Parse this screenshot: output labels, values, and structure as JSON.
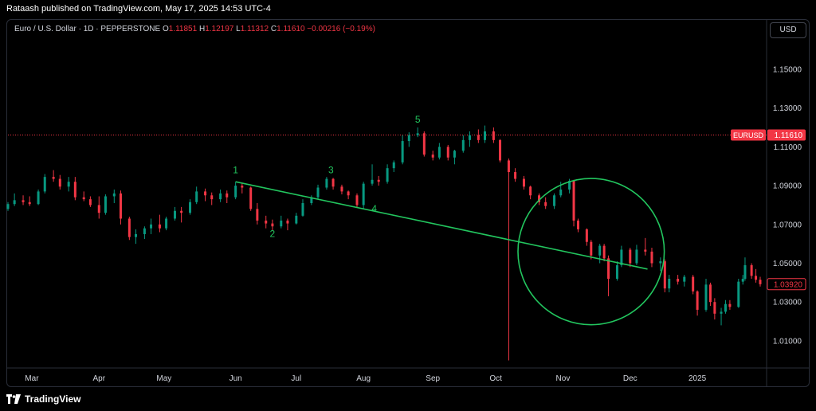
{
  "header": {
    "published": "Rataash published on TradingView.com, May 17, 2025 14:53 UTC-4"
  },
  "symbol": {
    "name": "Euro / U.S. Dollar · 1D · PEPPERSTONE",
    "o_label": "O",
    "o_value": "1.11851",
    "h_label": "H",
    "h_value": "1.12197",
    "l_label": "L",
    "l_value": "1.11312",
    "c_label": "C",
    "c_value": "1.11610",
    "change": "−0.00216 (−0.19%)"
  },
  "currency_button": "USD",
  "price_labels": {
    "symbol_tag": "EURUSD",
    "last_price": "1.11610",
    "other_price": "1.03920"
  },
  "footer": {
    "brand": "TradingView"
  },
  "colors": {
    "up": "#089981",
    "down": "#f23645",
    "annotation": "#22c55e",
    "axis_text": "#d1d4dc",
    "background": "#000000"
  },
  "chart_data": {
    "type": "candlestick",
    "y_ticks": [
      "1.15000",
      "1.13000",
      "1.11000",
      "1.09000",
      "1.07000",
      "1.05000",
      "1.03000",
      "1.01000"
    ],
    "y_tick_values": [
      1.15,
      1.13,
      1.11,
      1.09,
      1.07,
      1.05,
      1.03,
      1.01
    ],
    "ylim": [
      0.996,
      1.166
    ],
    "xlim": [
      "2024-02-19",
      "2025-01-31"
    ],
    "x_ticks": [
      {
        "label": "Mar",
        "date": "2024-03-01"
      },
      {
        "label": "Apr",
        "date": "2024-04-01"
      },
      {
        "label": "May",
        "date": "2024-05-01"
      },
      {
        "label": "Jun",
        "date": "2024-06-03"
      },
      {
        "label": "Jul",
        "date": "2024-07-01"
      },
      {
        "label": "Aug",
        "date": "2024-08-01"
      },
      {
        "label": "Sep",
        "date": "2024-09-02"
      },
      {
        "label": "Oct",
        "date": "2024-10-01"
      },
      {
        "label": "Nov",
        "date": "2024-11-01"
      },
      {
        "label": "Dec",
        "date": "2024-12-02"
      },
      {
        "label": "2025",
        "date": "2025-01-02"
      }
    ],
    "price_line": 1.1161,
    "trendline": {
      "from": {
        "date": "2024-06-03",
        "price": 1.092
      },
      "to": {
        "date": "2024-12-10",
        "price": 1.047
      }
    },
    "circle": {
      "center_date": "2024-11-14",
      "center_price": 1.056,
      "radius_price": 0.0145
    },
    "wave_labels": [
      {
        "label": "1",
        "date": "2024-06-03",
        "price": 1.0965
      },
      {
        "label": "2",
        "date": "2024-06-20",
        "price": 1.0635
      },
      {
        "label": "3",
        "date": "2024-07-17",
        "price": 1.0965
      },
      {
        "label": "4",
        "date": "2024-08-06",
        "price": 1.0765
      },
      {
        "label": "5",
        "date": "2024-08-26",
        "price": 1.1225
      }
    ],
    "candles": [
      {
        "date": "2024-02-19",
        "o": 1.078,
        "h": 1.0815,
        "l": 1.077,
        "c": 1.0805
      },
      {
        "date": "2024-02-22",
        "o": 1.0805,
        "h": 1.086,
        "l": 1.0795,
        "c": 1.0825
      },
      {
        "date": "2024-02-26",
        "o": 1.0825,
        "h": 1.085,
        "l": 1.08,
        "c": 1.0815
      },
      {
        "date": "2024-02-29",
        "o": 1.0815,
        "h": 1.0845,
        "l": 1.0795,
        "c": 1.0805
      },
      {
        "date": "2024-03-04",
        "o": 1.0805,
        "h": 1.088,
        "l": 1.08,
        "c": 1.087
      },
      {
        "date": "2024-03-07",
        "o": 1.087,
        "h": 1.096,
        "l": 1.086,
        "c": 1.0945
      },
      {
        "date": "2024-03-11",
        "o": 1.0945,
        "h": 1.098,
        "l": 1.092,
        "c": 1.0935
      },
      {
        "date": "2024-03-14",
        "o": 1.0935,
        "h": 1.0955,
        "l": 1.088,
        "c": 1.0895
      },
      {
        "date": "2024-03-18",
        "o": 1.0895,
        "h": 1.0945,
        "l": 1.087,
        "c": 1.092
      },
      {
        "date": "2024-03-21",
        "o": 1.092,
        "h": 1.0945,
        "l": 1.0825,
        "c": 1.084
      },
      {
        "date": "2024-03-25",
        "o": 1.084,
        "h": 1.087,
        "l": 1.082,
        "c": 1.083
      },
      {
        "date": "2024-03-28",
        "o": 1.083,
        "h": 1.0845,
        "l": 1.079,
        "c": 1.08
      },
      {
        "date": "2024-04-01",
        "o": 1.08,
        "h": 1.0845,
        "l": 1.073,
        "c": 1.076
      },
      {
        "date": "2024-04-04",
        "o": 1.076,
        "h": 1.0855,
        "l": 1.075,
        "c": 1.0845
      },
      {
        "date": "2024-04-08",
        "o": 1.0845,
        "h": 1.088,
        "l": 1.081,
        "c": 1.086
      },
      {
        "date": "2024-04-11",
        "o": 1.086,
        "h": 1.0875,
        "l": 1.07,
        "c": 1.073
      },
      {
        "date": "2024-04-15",
        "o": 1.073,
        "h": 1.074,
        "l": 1.062,
        "c": 1.0635
      },
      {
        "date": "2024-04-18",
        "o": 1.0635,
        "h": 1.0675,
        "l": 1.06,
        "c": 1.065
      },
      {
        "date": "2024-04-22",
        "o": 1.065,
        "h": 1.069,
        "l": 1.0625,
        "c": 1.068
      },
      {
        "date": "2024-04-25",
        "o": 1.068,
        "h": 1.073,
        "l": 1.065,
        "c": 1.07
      },
      {
        "date": "2024-04-29",
        "o": 1.07,
        "h": 1.075,
        "l": 1.066,
        "c": 1.068
      },
      {
        "date": "2024-05-02",
        "o": 1.068,
        "h": 1.074,
        "l": 1.067,
        "c": 1.073
      },
      {
        "date": "2024-05-06",
        "o": 1.073,
        "h": 1.079,
        "l": 1.072,
        "c": 1.077
      },
      {
        "date": "2024-05-09",
        "o": 1.077,
        "h": 1.079,
        "l": 1.071,
        "c": 1.076
      },
      {
        "date": "2024-05-13",
        "o": 1.076,
        "h": 1.083,
        "l": 1.075,
        "c": 1.0815
      },
      {
        "date": "2024-05-16",
        "o": 1.0815,
        "h": 1.0895,
        "l": 1.0805,
        "c": 1.087
      },
      {
        "date": "2024-05-20",
        "o": 1.087,
        "h": 1.0885,
        "l": 1.082,
        "c": 1.085
      },
      {
        "date": "2024-05-23",
        "o": 1.085,
        "h": 1.0865,
        "l": 1.08,
        "c": 1.083
      },
      {
        "date": "2024-05-27",
        "o": 1.083,
        "h": 1.088,
        "l": 1.0815,
        "c": 1.086
      },
      {
        "date": "2024-05-30",
        "o": 1.086,
        "h": 1.0875,
        "l": 1.081,
        "c": 1.084
      },
      {
        "date": "2024-06-03",
        "o": 1.084,
        "h": 1.092,
        "l": 1.083,
        "c": 1.09
      },
      {
        "date": "2024-06-06",
        "o": 1.09,
        "h": 1.0915,
        "l": 1.086,
        "c": 1.089
      },
      {
        "date": "2024-06-10",
        "o": 1.089,
        "h": 1.0895,
        "l": 1.077,
        "c": 1.078
      },
      {
        "date": "2024-06-13",
        "o": 1.078,
        "h": 1.081,
        "l": 1.07,
        "c": 1.072
      },
      {
        "date": "2024-06-17",
        "o": 1.072,
        "h": 1.0745,
        "l": 1.068,
        "c": 1.0705
      },
      {
        "date": "2024-06-20",
        "o": 1.0705,
        "h": 1.0725,
        "l": 1.067,
        "c": 1.069
      },
      {
        "date": "2024-06-24",
        "o": 1.069,
        "h": 1.0745,
        "l": 1.068,
        "c": 1.072
      },
      {
        "date": "2024-06-27",
        "o": 1.072,
        "h": 1.073,
        "l": 1.067,
        "c": 1.0705
      },
      {
        "date": "2024-07-01",
        "o": 1.0705,
        "h": 1.076,
        "l": 1.07,
        "c": 1.0745
      },
      {
        "date": "2024-07-04",
        "o": 1.0745,
        "h": 1.083,
        "l": 1.074,
        "c": 1.081
      },
      {
        "date": "2024-07-08",
        "o": 1.081,
        "h": 1.085,
        "l": 1.08,
        "c": 1.084
      },
      {
        "date": "2024-07-11",
        "o": 1.084,
        "h": 1.0905,
        "l": 1.083,
        "c": 1.089
      },
      {
        "date": "2024-07-15",
        "o": 1.089,
        "h": 1.0945,
        "l": 1.088,
        "c": 1.0935
      },
      {
        "date": "2024-07-18",
        "o": 1.0935,
        "h": 1.094,
        "l": 1.088,
        "c": 1.0895
      },
      {
        "date": "2024-07-22",
        "o": 1.0895,
        "h": 1.0905,
        "l": 1.0855,
        "c": 1.087
      },
      {
        "date": "2024-07-25",
        "o": 1.087,
        "h": 1.0875,
        "l": 1.083,
        "c": 1.085
      },
      {
        "date": "2024-07-29",
        "o": 1.085,
        "h": 1.086,
        "l": 1.079,
        "c": 1.08
      },
      {
        "date": "2024-08-01",
        "o": 1.08,
        "h": 1.092,
        "l": 1.078,
        "c": 1.091
      },
      {
        "date": "2024-08-05",
        "o": 1.091,
        "h": 1.101,
        "l": 1.09,
        "c": 1.093
      },
      {
        "date": "2024-08-08",
        "o": 1.093,
        "h": 1.095,
        "l": 1.09,
        "c": 1.092
      },
      {
        "date": "2024-08-12",
        "o": 1.092,
        "h": 1.101,
        "l": 1.091,
        "c": 1.099
      },
      {
        "date": "2024-08-15",
        "o": 1.099,
        "h": 1.103,
        "l": 1.097,
        "c": 1.102
      },
      {
        "date": "2024-08-19",
        "o": 1.102,
        "h": 1.116,
        "l": 1.101,
        "c": 1.113
      },
      {
        "date": "2024-08-22",
        "o": 1.113,
        "h": 1.1175,
        "l": 1.11,
        "c": 1.116
      },
      {
        "date": "2024-08-26",
        "o": 1.116,
        "h": 1.12,
        "l": 1.115,
        "c": 1.117
      },
      {
        "date": "2024-08-29",
        "o": 1.117,
        "h": 1.118,
        "l": 1.105,
        "c": 1.106
      },
      {
        "date": "2024-09-02",
        "o": 1.106,
        "h": 1.108,
        "l": 1.103,
        "c": 1.1045
      },
      {
        "date": "2024-09-05",
        "o": 1.1045,
        "h": 1.112,
        "l": 1.1035,
        "c": 1.11
      },
      {
        "date": "2024-09-09",
        "o": 1.11,
        "h": 1.111,
        "l": 1.103,
        "c": 1.1045
      },
      {
        "date": "2024-09-12",
        "o": 1.1045,
        "h": 1.1085,
        "l": 1.101,
        "c": 1.108
      },
      {
        "date": "2024-09-16",
        "o": 1.108,
        "h": 1.116,
        "l": 1.107,
        "c": 1.1135
      },
      {
        "date": "2024-09-19",
        "o": 1.1135,
        "h": 1.118,
        "l": 1.11,
        "c": 1.116
      },
      {
        "date": "2024-09-23",
        "o": 1.116,
        "h": 1.119,
        "l": 1.112,
        "c": 1.1135
      },
      {
        "date": "2024-09-26",
        "o": 1.1135,
        "h": 1.121,
        "l": 1.112,
        "c": 1.118
      },
      {
        "date": "2024-09-30",
        "o": 1.118,
        "h": 1.12,
        "l": 1.112,
        "c": 1.1135
      },
      {
        "date": "2024-10-03",
        "o": 1.1135,
        "h": 1.114,
        "l": 1.102,
        "c": 1.103
      },
      {
        "date": "2024-10-07",
        "o": 1.103,
        "h": 1.104,
        "l": 0.9999,
        "c": 1.097
      },
      {
        "date": "2024-10-10",
        "o": 1.097,
        "h": 1.099,
        "l": 1.092,
        "c": 1.0935
      },
      {
        "date": "2024-10-14",
        "o": 1.0935,
        "h": 1.095,
        "l": 1.088,
        "c": 1.0895
      },
      {
        "date": "2024-10-17",
        "o": 1.0895,
        "h": 1.09,
        "l": 1.083,
        "c": 1.085
      },
      {
        "date": "2024-10-21",
        "o": 1.085,
        "h": 1.086,
        "l": 1.08,
        "c": 1.0815
      },
      {
        "date": "2024-10-24",
        "o": 1.0815,
        "h": 1.084,
        "l": 1.078,
        "c": 1.0795
      },
      {
        "date": "2024-10-28",
        "o": 1.0795,
        "h": 1.086,
        "l": 1.078,
        "c": 1.085
      },
      {
        "date": "2024-10-31",
        "o": 1.085,
        "h": 1.092,
        "l": 1.084,
        "c": 1.088
      },
      {
        "date": "2024-11-04",
        "o": 1.088,
        "h": 1.0935,
        "l": 1.086,
        "c": 1.0925
      },
      {
        "date": "2024-11-06",
        "o": 1.0925,
        "h": 1.093,
        "l": 1.069,
        "c": 1.072
      },
      {
        "date": "2024-11-08",
        "o": 1.072,
        "h": 1.073,
        "l": 1.066,
        "c": 1.0675
      },
      {
        "date": "2024-11-12",
        "o": 1.0675,
        "h": 1.068,
        "l": 1.059,
        "c": 1.061
      },
      {
        "date": "2024-11-14",
        "o": 1.061,
        "h": 1.062,
        "l": 1.052,
        "c": 1.054
      },
      {
        "date": "2024-11-18",
        "o": 1.054,
        "h": 1.06,
        "l": 1.05,
        "c": 1.059
      },
      {
        "date": "2024-11-20",
        "o": 1.059,
        "h": 1.06,
        "l": 1.051,
        "c": 1.0525
      },
      {
        "date": "2024-11-22",
        "o": 1.0525,
        "h": 1.054,
        "l": 1.033,
        "c": 1.042
      },
      {
        "date": "2024-11-26",
        "o": 1.042,
        "h": 1.051,
        "l": 1.041,
        "c": 1.049
      },
      {
        "date": "2024-11-28",
        "o": 1.049,
        "h": 1.059,
        "l": 1.048,
        "c": 1.057
      },
      {
        "date": "2024-12-02",
        "o": 1.057,
        "h": 1.058,
        "l": 1.048,
        "c": 1.05
      },
      {
        "date": "2024-12-05",
        "o": 1.05,
        "h": 1.0595,
        "l": 1.049,
        "c": 1.057
      },
      {
        "date": "2024-12-09",
        "o": 1.057,
        "h": 1.063,
        "l": 1.054,
        "c": 1.056
      },
      {
        "date": "2024-12-12",
        "o": 1.056,
        "h": 1.058,
        "l": 1.048,
        "c": 1.05
      },
      {
        "date": "2024-12-16",
        "o": 1.05,
        "h": 1.053,
        "l": 1.046,
        "c": 1.051
      },
      {
        "date": "2024-12-18",
        "o": 1.051,
        "h": 1.052,
        "l": 1.035,
        "c": 1.037
      },
      {
        "date": "2024-12-20",
        "o": 1.037,
        "h": 1.044,
        "l": 1.035,
        "c": 1.042
      },
      {
        "date": "2024-12-24",
        "o": 1.042,
        "h": 1.044,
        "l": 1.039,
        "c": 1.0405
      },
      {
        "date": "2024-12-27",
        "o": 1.0405,
        "h": 1.044,
        "l": 1.038,
        "c": 1.043
      },
      {
        "date": "2024-12-31",
        "o": 1.043,
        "h": 1.044,
        "l": 1.034,
        "c": 1.0355
      },
      {
        "date": "2025-01-02",
        "o": 1.0355,
        "h": 1.036,
        "l": 1.023,
        "c": 1.026
      },
      {
        "date": "2025-01-06",
        "o": 1.026,
        "h": 1.042,
        "l": 1.025,
        "c": 1.039
      },
      {
        "date": "2025-01-08",
        "o": 1.039,
        "h": 1.04,
        "l": 1.028,
        "c": 1.03
      },
      {
        "date": "2025-01-10",
        "o": 1.03,
        "h": 1.032,
        "l": 1.021,
        "c": 1.024
      },
      {
        "date": "2025-01-13",
        "o": 1.024,
        "h": 1.027,
        "l": 1.018,
        "c": 1.025
      },
      {
        "date": "2025-01-15",
        "o": 1.025,
        "h": 1.031,
        "l": 1.024,
        "c": 1.029
      },
      {
        "date": "2025-01-17",
        "o": 1.029,
        "h": 1.031,
        "l": 1.026,
        "c": 1.0275
      },
      {
        "date": "2025-01-21",
        "o": 1.0275,
        "h": 1.042,
        "l": 1.027,
        "c": 1.0405
      },
      {
        "date": "2025-01-23",
        "o": 1.0405,
        "h": 1.044,
        "l": 1.039,
        "c": 1.042
      },
      {
        "date": "2025-01-24",
        "o": 1.042,
        "h": 1.053,
        "l": 1.041,
        "c": 1.049
      },
      {
        "date": "2025-01-27",
        "o": 1.049,
        "h": 1.05,
        "l": 1.042,
        "c": 1.0435
      },
      {
        "date": "2025-01-29",
        "o": 1.0435,
        "h": 1.047,
        "l": 1.04,
        "c": 1.0415
      },
      {
        "date": "2025-01-31",
        "o": 1.0415,
        "h": 1.043,
        "l": 1.038,
        "c": 1.0392
      }
    ]
  }
}
